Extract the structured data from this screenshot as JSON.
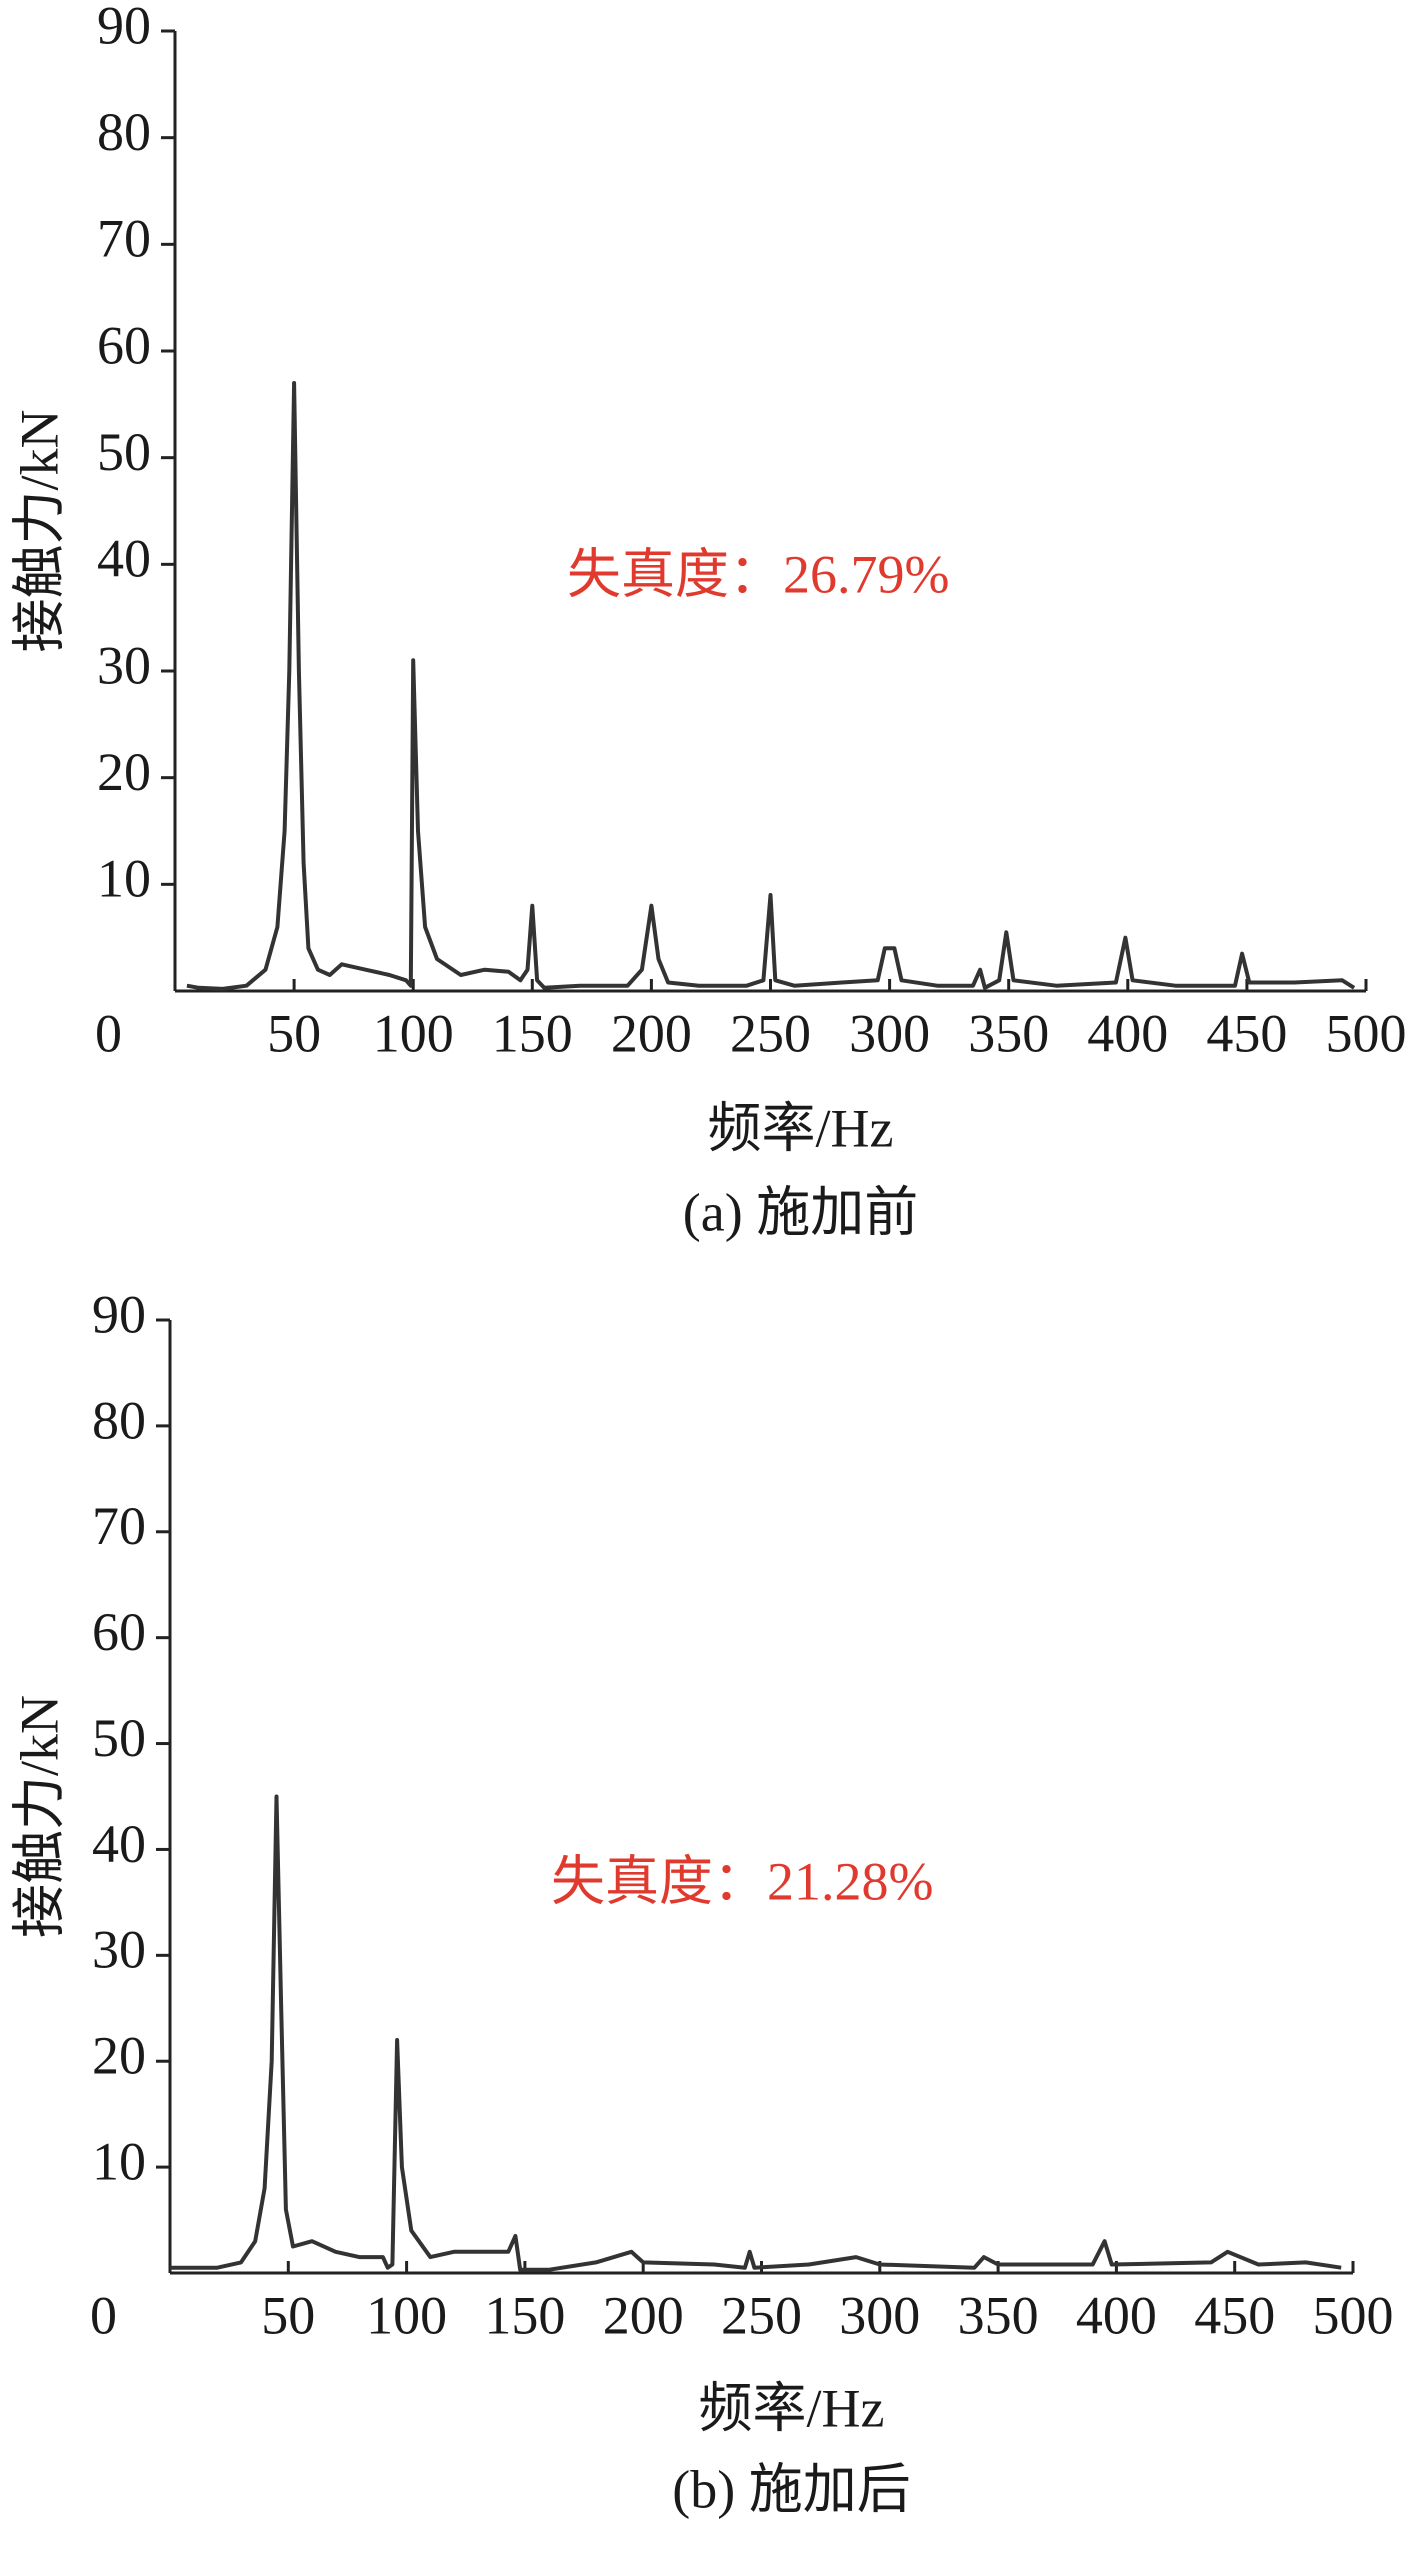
{
  "chart_data": [
    {
      "type": "line",
      "xlabel": "频率/Hz",
      "ylabel": "接触力/kN",
      "caption": "(a) 施加前",
      "annotation": "失真度：26.79%",
      "xlim": [
        0,
        500
      ],
      "ylim": [
        0,
        90
      ],
      "xticks": [
        0,
        50,
        100,
        150,
        200,
        250,
        300,
        350,
        400,
        450,
        500
      ],
      "yticks": [
        10,
        20,
        30,
        40,
        50,
        60,
        70,
        80,
        90
      ],
      "series": [
        {
          "color": "#333333",
          "x": [
            5,
            10,
            20,
            30,
            38,
            43,
            46,
            48,
            50,
            52,
            54,
            56,
            60,
            65,
            70,
            80,
            90,
            97,
            99,
            100,
            102,
            105,
            110,
            120,
            130,
            140,
            145,
            148,
            150,
            152,
            155,
            170,
            190,
            196,
            200,
            203,
            207,
            220,
            240,
            247,
            250,
            252,
            260,
            280,
            295,
            298,
            302,
            305,
            320,
            335,
            338,
            340,
            346,
            349,
            352,
            370,
            395,
            399,
            402,
            420,
            445,
            448,
            451,
            470,
            490,
            495
          ],
          "values": [
            0.5,
            0.3,
            0.2,
            0.5,
            2,
            6,
            15,
            30,
            57,
            30,
            12,
            4,
            2,
            1.5,
            2.5,
            2,
            1.5,
            1,
            0.5,
            31,
            15,
            6,
            3,
            1.5,
            2,
            1.8,
            1,
            2,
            8,
            1,
            0.3,
            0.5,
            0.5,
            2,
            8,
            3,
            0.8,
            0.5,
            0.5,
            1,
            9,
            1,
            0.5,
            0.8,
            1,
            4,
            4,
            1,
            0.5,
            0.5,
            2,
            0.3,
            1,
            5.5,
            1,
            0.5,
            0.8,
            5,
            1,
            0.5,
            0.5,
            3.5,
            0.8,
            0.8,
            1,
            0.3
          ]
        }
      ]
    },
    {
      "type": "line",
      "xlabel": "频率/Hz",
      "ylabel": "接触力/kN",
      "caption": "(b) 施加后",
      "annotation": "失真度：21.28%",
      "xlim": [
        0,
        500
      ],
      "ylim": [
        0,
        90
      ],
      "xticks": [
        0,
        50,
        100,
        150,
        200,
        250,
        300,
        350,
        400,
        450,
        500
      ],
      "yticks": [
        10,
        20,
        30,
        40,
        50,
        60,
        70,
        80,
        90
      ],
      "series": [
        {
          "color": "#333333",
          "x": [
            0,
            20,
            30,
            36,
            40,
            43,
            45,
            47,
            49,
            52,
            60,
            70,
            80,
            90,
            92,
            94,
            96,
            98,
            102,
            110,
            120,
            135,
            143,
            146,
            148,
            160,
            180,
            195,
            200,
            230,
            243,
            245,
            247,
            270,
            290,
            300,
            340,
            344,
            350,
            390,
            395,
            398,
            440,
            447,
            460,
            480,
            495
          ],
          "values": [
            0.5,
            0.5,
            1,
            3,
            8,
            20,
            45,
            25,
            6,
            2.5,
            3,
            2,
            1.5,
            1.5,
            0.5,
            0.8,
            22,
            10,
            4,
            1.5,
            2,
            2,
            2,
            3.5,
            0.3,
            0.3,
            1,
            2,
            1,
            0.8,
            0.5,
            2,
            0.5,
            0.8,
            1.5,
            0.8,
            0.5,
            1.5,
            0.8,
            0.8,
            3,
            0.8,
            1,
            2,
            0.8,
            1,
            0.5
          ]
        }
      ]
    }
  ]
}
